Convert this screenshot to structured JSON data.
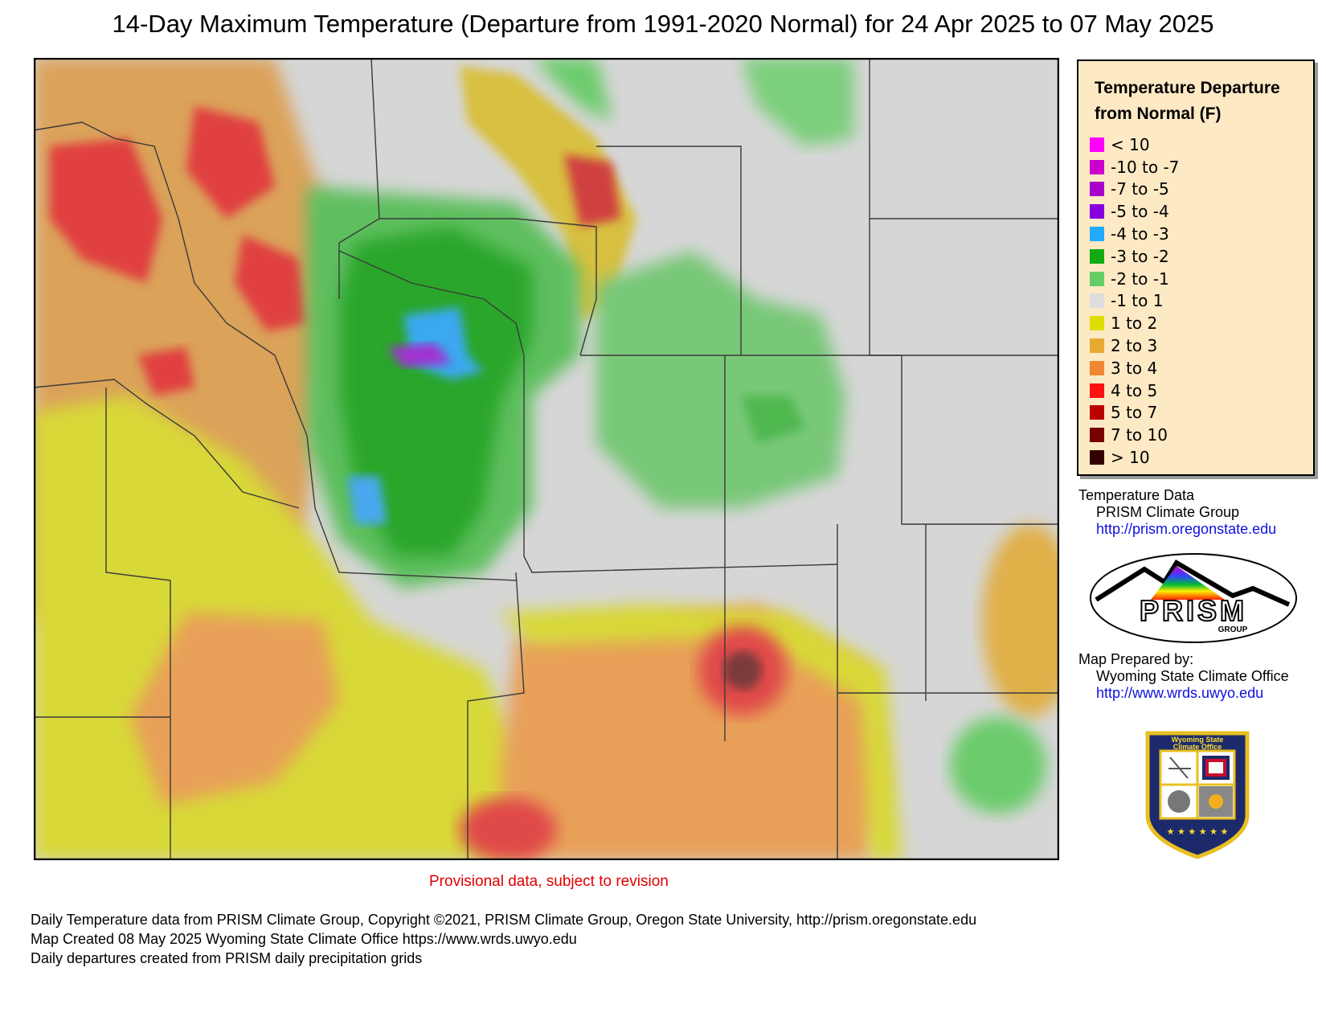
{
  "title": "14-Day Maximum Temperature (Departure from 1991-2020 Normal) for 24 Apr 2025 to 07 May 2025",
  "legend": {
    "title_line1": "Temperature Departure",
    "title_line2": "from Normal (F)",
    "items": [
      {
        "label": "< 10",
        "color": "#ff00ff"
      },
      {
        "label": "-10 to -7",
        "color": "#cc00cc"
      },
      {
        "label": "-7 to -5",
        "color": "#aa00cc"
      },
      {
        "label": "-5 to -4",
        "color": "#8800dd"
      },
      {
        "label": "-4 to -3",
        "color": "#22aaff"
      },
      {
        "label": "-3 to -2",
        "color": "#11aa11"
      },
      {
        "label": "-2 to -1",
        "color": "#66cc66"
      },
      {
        "label": "-1 to 1",
        "color": "#dddddd"
      },
      {
        "label": "1 to 2",
        "color": "#dddd00"
      },
      {
        "label": "2 to 3",
        "color": "#e6aa33"
      },
      {
        "label": "3 to 4",
        "color": "#ee8833"
      },
      {
        "label": "4 to 5",
        "color": "#ff1111"
      },
      {
        "label": "5 to 7",
        "color": "#bb0000"
      },
      {
        "label": "7 to 10",
        "color": "#770000"
      },
      {
        "label": "> 10",
        "color": "#330000"
      }
    ]
  },
  "credits": {
    "data_heading": "Temperature Data",
    "data_source": "PRISM Climate Group",
    "data_url": "http://prism.oregonstate.edu",
    "prepared_heading": "Map Prepared by:",
    "prepared_by": "Wyoming State Climate Office",
    "prepared_url": "http://www.wrds.uwyo.edu"
  },
  "logos": {
    "prism_text": "PRISM",
    "prism_sub": "GROUP",
    "wsco_text1": "Wyoming State",
    "wsco_text2": "Climate Office"
  },
  "provisional": "Provisional data, subject to revision",
  "footer": {
    "line1": "Daily Temperature data from PRISM Climate Group, Copyright ©2021, PRISM Climate Group, Oregon State University, http://prism.oregonstate.edu",
    "line2": "Map Created 08 May 2025 Wyoming State Climate Office https://www.wrds.uwyo.edu",
    "line3": "Daily departures created from PRISM daily precipitation grids"
  }
}
